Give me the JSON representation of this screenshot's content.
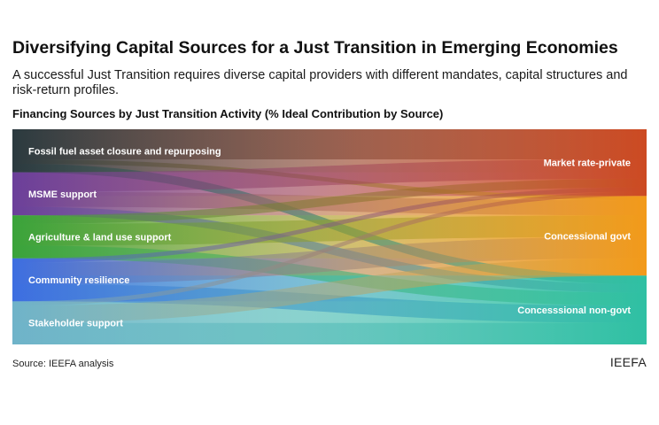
{
  "title": "Diversifying Capital Sources for a Just Transition in Emerging Economies",
  "subtitle": "A successful Just Transition requires diverse capital providers with different mandates, capital structures and risk-return profiles.",
  "chart_title": "Financing Sources by Just Transition Activity (% Ideal Contribution by Source)",
  "source": "Source: IEEFA analysis",
  "brand": "IEEFA",
  "chart_data": {
    "type": "sankey",
    "sources": [
      {
        "name": "Fossil fuel asset closure and repurposing",
        "color": "#2b3a3f"
      },
      {
        "name": "MSME support",
        "color": "#6b3f9a"
      },
      {
        "name": "Agriculture & land use support",
        "color": "#3aa33a"
      },
      {
        "name": "Community resilience",
        "color": "#3d6ee0"
      },
      {
        "name": "Stakeholder support",
        "color": "#6fb3c9"
      }
    ],
    "targets": [
      {
        "name": "Market rate-private",
        "color": "#cc4a22"
      },
      {
        "name": "Concessional govt",
        "color": "#f29a1a"
      },
      {
        "name": "Concesssional non-govt",
        "color": "#2fc0a3"
      }
    ],
    "links": [
      {
        "source": 0,
        "target": 0,
        "value": 70
      },
      {
        "source": 0,
        "target": 1,
        "value": 10
      },
      {
        "source": 0,
        "target": 2,
        "value": 20
      },
      {
        "source": 1,
        "target": 0,
        "value": 45
      },
      {
        "source": 1,
        "target": 1,
        "value": 35
      },
      {
        "source": 1,
        "target": 2,
        "value": 20
      },
      {
        "source": 2,
        "target": 0,
        "value": 20
      },
      {
        "source": 2,
        "target": 1,
        "value": 50
      },
      {
        "source": 2,
        "target": 2,
        "value": 30
      },
      {
        "source": 3,
        "target": 0,
        "value": 10
      },
      {
        "source": 3,
        "target": 1,
        "value": 50
      },
      {
        "source": 3,
        "target": 2,
        "value": 40
      },
      {
        "source": 4,
        "target": 0,
        "value": 10
      },
      {
        "source": 4,
        "target": 1,
        "value": 40
      },
      {
        "source": 4,
        "target": 2,
        "value": 50
      }
    ]
  }
}
